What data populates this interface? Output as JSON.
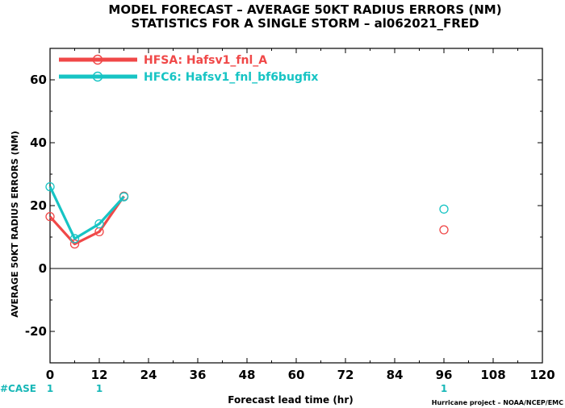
{
  "chart_data": {
    "type": "line",
    "title_line1": "MODEL FORECAST – AVERAGE 50KT RADIUS ERRORS (NM)",
    "title_line2": "STATISTICS FOR A SINGLE STORM – al062021_FRED",
    "xlabel": "Forecast lead time (hr)",
    "ylabel": "AVERAGE 50KT RADIUS ERRORS (NM)",
    "xlim": [
      0,
      120
    ],
    "ylim": [
      -30,
      70
    ],
    "xticks": [
      0,
      12,
      24,
      36,
      48,
      60,
      72,
      84,
      96,
      108,
      120
    ],
    "yticks": [
      -20,
      0,
      20,
      40,
      60
    ],
    "zero_line": 0,
    "grid": false,
    "legend_position": "top-left",
    "series": [
      {
        "name": "HFSA: Hafsv1_fnl_A",
        "color": "#f04848",
        "x": [
          0,
          6,
          12,
          18,
          96
        ],
        "y": [
          16.5,
          7.8,
          11.7,
          23.0,
          12.3
        ],
        "connected_count": 4
      },
      {
        "name": "HFC6: Hafsv1_fnl_bf6bugfix",
        "color": "#17c4c4",
        "x": [
          0,
          6,
          12,
          18,
          96
        ],
        "y": [
          26.0,
          9.5,
          14.2,
          22.8,
          18.9
        ],
        "connected_count": 4
      }
    ],
    "case_label": "#CASE",
    "case_counts": [
      {
        "x": 0,
        "count": "1"
      },
      {
        "x": 12,
        "count": "1"
      },
      {
        "x": 96,
        "count": "1"
      }
    ],
    "credit": "Hurricane project – NOAA/NCEP/EMC"
  }
}
